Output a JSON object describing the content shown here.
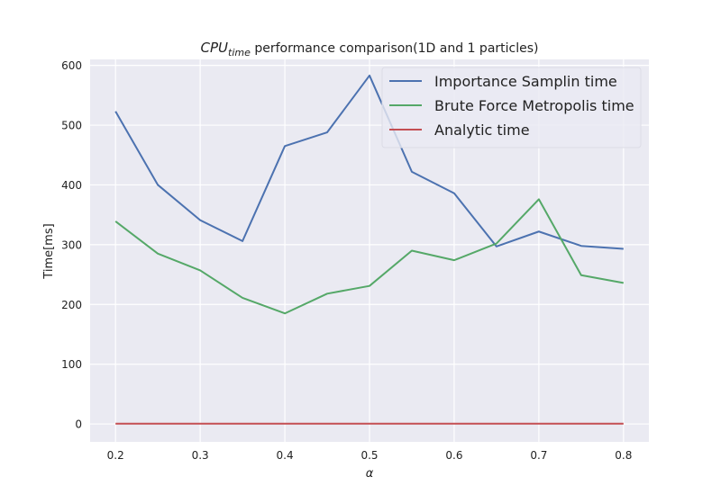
{
  "chart_data": {
    "type": "line",
    "title_main": "CPU",
    "title_sub": "time",
    "title_rest": " performance comparison(1D and 1 particles)",
    "xlabel": "α",
    "ylabel": "Time[ms]",
    "xlim": [
      0.17,
      0.83
    ],
    "ylim": [
      -30,
      610
    ],
    "xticks": [
      0.2,
      0.3,
      0.4,
      0.5,
      0.6,
      0.7,
      0.8
    ],
    "yticks": [
      0,
      100,
      200,
      300,
      400,
      500,
      600
    ],
    "xtick_labels": [
      "0.2",
      "0.3",
      "0.4",
      "0.5",
      "0.6",
      "0.7",
      "0.8"
    ],
    "ytick_labels": [
      "0",
      "100",
      "200",
      "300",
      "400",
      "500",
      "600"
    ],
    "grid": true,
    "legend_position": "top-right",
    "x": [
      0.2,
      0.25,
      0.3,
      0.35,
      0.4,
      0.45,
      0.5,
      0.55,
      0.6,
      0.65,
      0.7,
      0.75,
      0.8
    ],
    "series": [
      {
        "name": "Importance Samplin time",
        "color": "#4c72b0",
        "values": [
          523,
          400,
          341,
          306,
          465,
          488,
          583,
          422,
          386,
          297,
          322,
          298,
          293
        ]
      },
      {
        "name": "Brute Force Metropolis time",
        "color": "#55a868",
        "values": [
          339,
          285,
          257,
          211,
          185,
          218,
          231,
          290,
          274,
          302,
          376,
          249,
          236
        ]
      },
      {
        "name": "Analytic time",
        "color": "#c44e52",
        "values": [
          0.5,
          0.5,
          0.5,
          0.5,
          0.5,
          0.5,
          0.5,
          0.5,
          0.5,
          0.5,
          0.5,
          0.5,
          0.5
        ]
      }
    ],
    "colors": {
      "plot_background": "#eaeaf2",
      "grid": "#ffffff"
    }
  }
}
